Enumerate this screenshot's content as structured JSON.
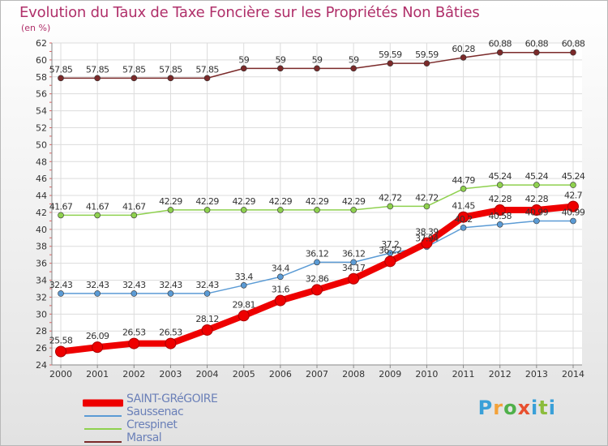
{
  "title": "Evolution du Taux de Taxe Foncière sur les Propriétés Non Bâties",
  "subtitle": "(en %)",
  "logo": "Proxiti",
  "chart_data": {
    "type": "line",
    "title": "Evolution du Taux de Taxe Foncière sur les Propriétés Non Bâties",
    "ylabel": "(en %)",
    "xlabel": "",
    "ylim": [
      24,
      62
    ],
    "yticks": [
      24,
      26,
      28,
      30,
      32,
      34,
      36,
      38,
      40,
      42,
      44,
      46,
      48,
      50,
      52,
      54,
      56,
      58,
      60,
      62
    ],
    "grid": true,
    "x": [
      "2000",
      "2001",
      "2002",
      "2003",
      "2004",
      "2005",
      "2006",
      "2007",
      "2008",
      "2009",
      "2010",
      "2011",
      "2012",
      "2013",
      "2014"
    ],
    "series": [
      {
        "name": "SAINT-GRéGOIRE",
        "color": "#ee0000",
        "emphasis": true,
        "values": [
          25.58,
          26.09,
          26.53,
          26.53,
          28.12,
          29.81,
          31.6,
          32.86,
          34.17,
          36.22,
          38.39,
          41.45,
          42.28,
          42.28,
          42.7
        ],
        "labels": [
          "25.58",
          "26.09",
          "26.53",
          "26.53",
          "28.12",
          "29.81",
          "31.6",
          "32.86",
          "34.17",
          "36.22",
          "38.39",
          "41.45",
          "42.28",
          "42.28",
          "42.7"
        ]
      },
      {
        "name": "Saussenac",
        "color": "#5b9bd5",
        "values": [
          32.43,
          32.43,
          32.43,
          32.43,
          32.43,
          33.4,
          34.4,
          36.12,
          36.12,
          37.2,
          37.94,
          40.2,
          40.58,
          40.99,
          40.99
        ],
        "labels": [
          "32.43",
          "32.43",
          "32.43",
          "32.43",
          "32.43",
          "33.4",
          "34.4",
          "36.12",
          "36.12",
          "37.2",
          "37.94",
          "40.2",
          "40.58",
          "40.99",
          "40.99"
        ]
      },
      {
        "name": "Crespinet",
        "color": "#8fd14f",
        "values": [
          41.67,
          41.67,
          41.67,
          42.29,
          42.29,
          42.29,
          42.29,
          42.29,
          42.29,
          42.72,
          42.72,
          44.79,
          45.24,
          45.24,
          45.24
        ],
        "labels": [
          "41.67",
          "41.67",
          "41.67",
          "42.29",
          "42.29",
          "42.29",
          "42.29",
          "42.29",
          "42.29",
          "42.72",
          "42.72",
          "44.79",
          "45.24",
          "45.24",
          "45.24"
        ]
      },
      {
        "name": "Marsal",
        "color": "#7b2a2a",
        "values": [
          57.85,
          57.85,
          57.85,
          57.85,
          57.85,
          59,
          59,
          59,
          59,
          59.59,
          59.59,
          60.28,
          60.88,
          60.88,
          60.88
        ],
        "labels": [
          "57.85",
          "57.85",
          "57.85",
          "57.85",
          "57.85",
          "59",
          "59",
          "59",
          "59",
          "59.59",
          "59.59",
          "60.28",
          "60.88",
          "60.88",
          "60.88"
        ]
      }
    ]
  }
}
